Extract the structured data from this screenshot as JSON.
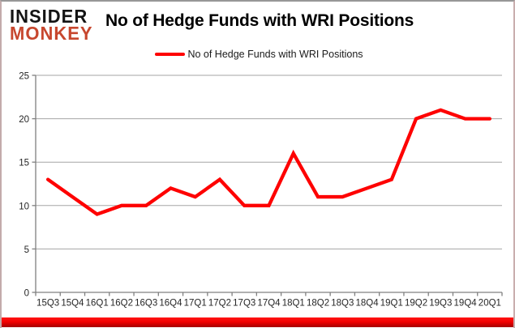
{
  "brand": {
    "line1": "INSIDER",
    "line2": "MONKEY"
  },
  "header": {
    "title": "No of Hedge Funds with WRI Positions"
  },
  "legend": {
    "label": "No of Hedge Funds with WRI Positions"
  },
  "colors": {
    "series": "#fe0000",
    "gridline": "#a6a6a6",
    "axis": "#808080",
    "tick_label": "#262626",
    "brand_red": "#c7472e",
    "bottom_bar": "#e60000"
  },
  "chart_data": {
    "type": "line",
    "title": "No of Hedge Funds with WRI Positions",
    "categories": [
      "15Q3",
      "15Q4",
      "16Q1",
      "16Q2",
      "16Q3",
      "16Q4",
      "17Q1",
      "17Q2",
      "17Q3",
      "17Q4",
      "18Q1",
      "18Q2",
      "18Q3",
      "18Q4",
      "19Q1",
      "19Q2",
      "19Q3",
      "19Q4",
      "20Q1"
    ],
    "series": [
      {
        "name": "No of Hedge Funds with WRI Positions",
        "color": "#fe0000",
        "values": [
          13,
          11,
          9,
          10,
          10,
          12,
          11,
          13,
          10,
          10,
          16,
          11,
          11,
          12,
          13,
          20,
          21,
          20,
          20
        ]
      }
    ],
    "xlabel": "",
    "ylabel": "",
    "ylim": [
      0,
      25
    ],
    "yticks": [
      0,
      5,
      10,
      15,
      20,
      25
    ],
    "grid": true,
    "legend_position": "top-center"
  }
}
